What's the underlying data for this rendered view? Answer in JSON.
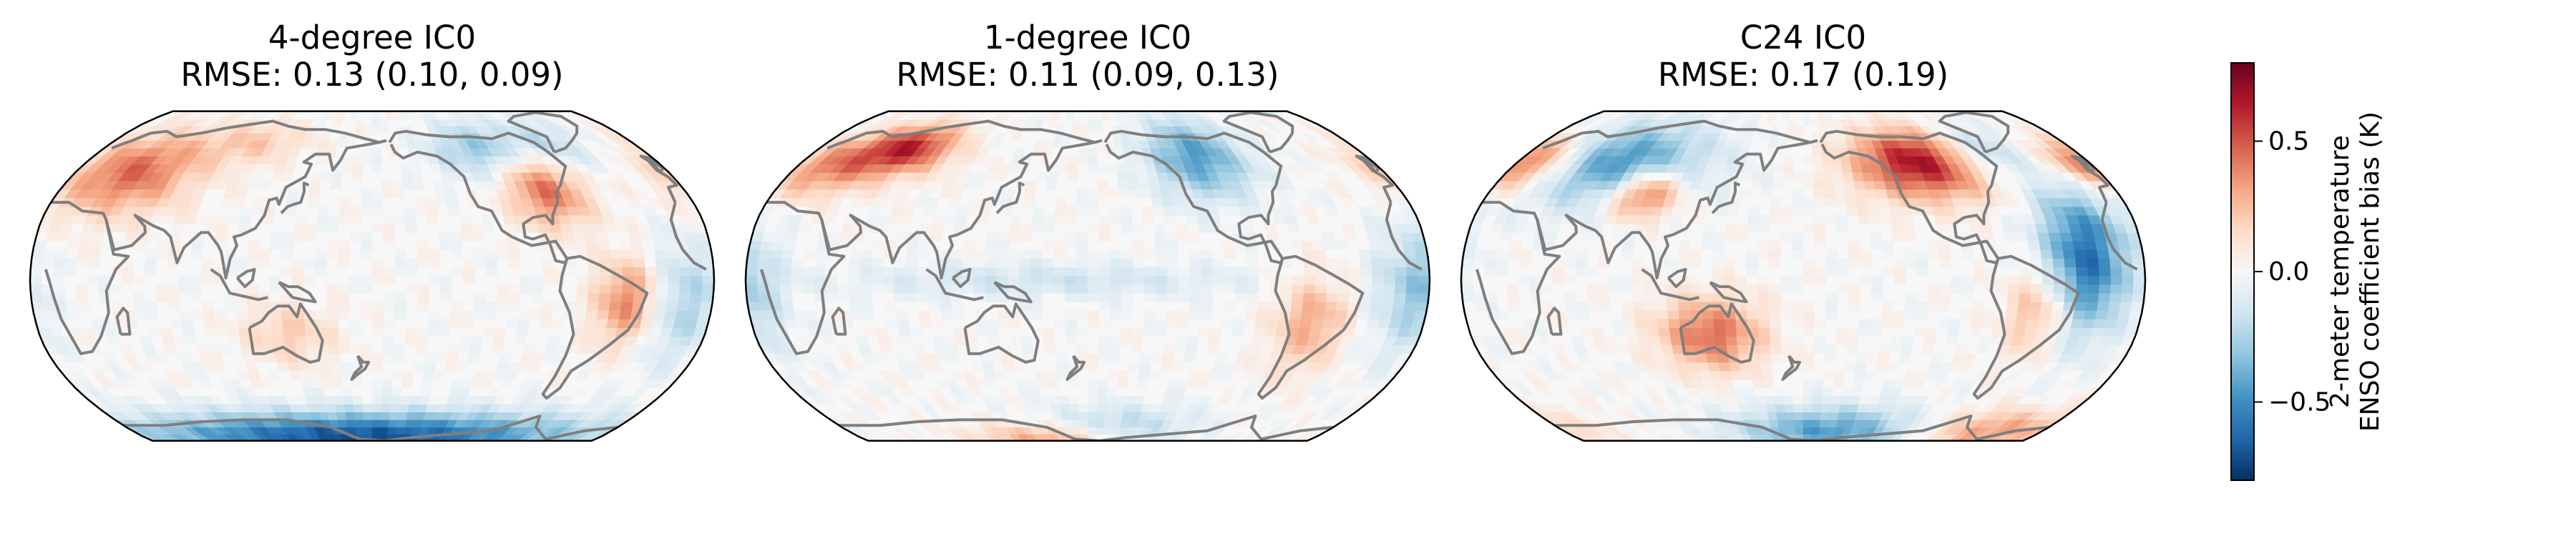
{
  "chart_data": [
    {
      "type": "heatmap",
      "projection": "Robinson, Pacific-centred",
      "title": "4-degree IC0",
      "subtitle": "RMSE: 0.13 (0.10, 0.09)",
      "rmse": 0.13,
      "rmse_other": [
        0.1,
        0.09
      ],
      "patterns": [
        {
          "lon": 35,
          "lat": 50,
          "value": 0.45,
          "w": 28,
          "h": 14
        },
        {
          "lon": 280,
          "lat": 42,
          "value": 0.45,
          "w": 16,
          "h": 12
        },
        {
          "lon": 315,
          "lat": -10,
          "value": 0.4,
          "w": 12,
          "h": 14
        },
        {
          "lon": 250,
          "lat": 62,
          "value": -0.3,
          "w": 22,
          "h": 10
        },
        {
          "lon": 170,
          "lat": -75,
          "value": -0.7,
          "w": 120,
          "h": 9
        },
        {
          "lon": 345,
          "lat": -10,
          "value": -0.25,
          "w": 14,
          "h": 20
        },
        {
          "lon": 135,
          "lat": -25,
          "value": 0.2,
          "w": 18,
          "h": 10
        },
        {
          "lon": 300,
          "lat": 65,
          "value": -0.2,
          "w": 20,
          "h": 10
        },
        {
          "lon": 100,
          "lat": 65,
          "value": 0.2,
          "w": 25,
          "h": 8
        }
      ]
    },
    {
      "type": "heatmap",
      "projection": "Robinson, Pacific-centred",
      "title": "1-degree IC0",
      "subtitle": "RMSE: 0.11 (0.09, 0.13)",
      "rmse": 0.11,
      "rmse_other": [
        0.09,
        0.13
      ],
      "patterns": [
        {
          "lon": 60,
          "lat": 62,
          "value": 0.6,
          "w": 22,
          "h": 9
        },
        {
          "lon": 20,
          "lat": 52,
          "value": 0.35,
          "w": 22,
          "h": 10
        },
        {
          "lon": 250,
          "lat": 58,
          "value": -0.45,
          "w": 22,
          "h": 14
        },
        {
          "lon": 355,
          "lat": -5,
          "value": -0.3,
          "w": 16,
          "h": 20
        },
        {
          "lon": 300,
          "lat": -20,
          "value": 0.3,
          "w": 14,
          "h": 16
        },
        {
          "lon": 150,
          "lat": -76,
          "value": 0.35,
          "w": 40,
          "h": 6
        },
        {
          "lon": 200,
          "lat": -70,
          "value": -0.25,
          "w": 40,
          "h": 8
        },
        {
          "lon": 160,
          "lat": 0,
          "value": -0.15,
          "w": 80,
          "h": 6
        }
      ]
    },
    {
      "type": "heatmap",
      "projection": "Robinson, Pacific-centred",
      "title": "C24 IC0",
      "subtitle": "RMSE: 0.17 (0.19)",
      "rmse": 0.17,
      "rmse_other": [
        0.19
      ],
      "patterns": [
        {
          "lon": 5,
          "lat": 55,
          "value": 0.6,
          "w": 24,
          "h": 10
        },
        {
          "lon": 255,
          "lat": 55,
          "value": 0.7,
          "w": 30,
          "h": 12
        },
        {
          "lon": 330,
          "lat": 10,
          "value": -0.6,
          "w": 16,
          "h": 24
        },
        {
          "lon": 60,
          "lat": 55,
          "value": -0.5,
          "w": 40,
          "h": 14
        },
        {
          "lon": 90,
          "lat": 40,
          "value": 0.55,
          "w": 14,
          "h": 8
        },
        {
          "lon": 130,
          "lat": -25,
          "value": 0.45,
          "w": 20,
          "h": 12
        },
        {
          "lon": 200,
          "lat": -72,
          "value": -0.45,
          "w": 50,
          "h": 9
        },
        {
          "lon": 320,
          "lat": -72,
          "value": 0.35,
          "w": 40,
          "h": 8
        },
        {
          "lon": 295,
          "lat": 60,
          "value": -0.35,
          "w": 20,
          "h": 10
        },
        {
          "lon": 305,
          "lat": -15,
          "value": 0.3,
          "w": 12,
          "h": 14
        }
      ]
    }
  ],
  "colorbar": {
    "label_line1": "2-meter temperature",
    "label_line2": "ENSO coefficient bias (K)",
    "vmin": -0.8,
    "vmax": 0.8,
    "ticks": [
      0.5,
      0.0,
      -0.5
    ],
    "tick_labels": [
      "0.5",
      "0.0",
      "−0.5"
    ],
    "colormap": "RdBu_r",
    "colors": [
      "#053061",
      "#2166ac",
      "#4393c3",
      "#92c5de",
      "#d1e5f0",
      "#f7f7f7",
      "#fddbc7",
      "#f4a582",
      "#d6604d",
      "#b2182b",
      "#67001f"
    ]
  },
  "colors": {
    "coastline": "#7f7f7f",
    "map_outline": "#000000"
  }
}
